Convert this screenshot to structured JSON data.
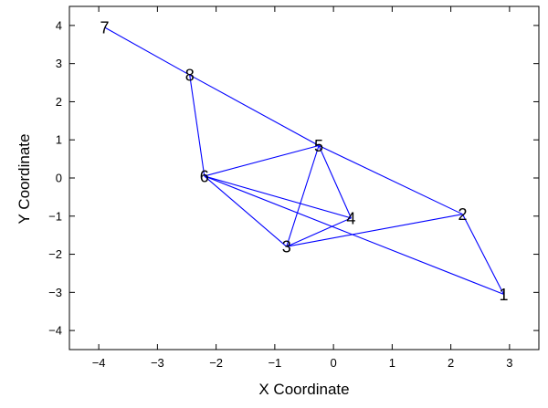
{
  "chart_data": {
    "type": "line",
    "title": "",
    "xlabel": "X Coordinate",
    "ylabel": "Y Coordinate",
    "xlim": [
      -4.5,
      3.5
    ],
    "ylim": [
      -4.5,
      4.5
    ],
    "xticks": [
      -4,
      -3,
      -2,
      -1,
      0,
      1,
      2,
      3
    ],
    "xtick_labels": [
      "−4",
      "−3",
      "−2",
      "−1",
      "0",
      "1",
      "2",
      "3"
    ],
    "yticks": [
      4,
      3,
      2,
      1,
      0,
      -1,
      -2,
      -3,
      -4
    ],
    "ytick_labels": [
      "4",
      "3",
      "2",
      "1",
      "0",
      "−1",
      "−2",
      "−3",
      "−4"
    ],
    "grid": false,
    "line_color": "#0000ff",
    "nodes": [
      {
        "label": "1",
        "x": 2.9,
        "y": -3.05
      },
      {
        "label": "2",
        "x": 2.2,
        "y": -0.95
      },
      {
        "label": "3",
        "x": -0.8,
        "y": -1.8
      },
      {
        "label": "4",
        "x": 0.3,
        "y": -1.05
      },
      {
        "label": "5",
        "x": -0.25,
        "y": 0.85
      },
      {
        "label": "6",
        "x": -2.2,
        "y": 0.05
      },
      {
        "label": "7",
        "x": -3.9,
        "y": 3.95
      },
      {
        "label": "8",
        "x": -2.45,
        "y": 2.7
      }
    ],
    "edges": [
      [
        "7",
        "8"
      ],
      [
        "8",
        "5"
      ],
      [
        "5",
        "2"
      ],
      [
        "2",
        "1"
      ],
      [
        "1",
        "6"
      ],
      [
        "6",
        "8"
      ],
      [
        "6",
        "5"
      ],
      [
        "6",
        "4"
      ],
      [
        "6",
        "3"
      ],
      [
        "3",
        "5"
      ],
      [
        "3",
        "4"
      ],
      [
        "4",
        "5"
      ],
      [
        "3",
        "2"
      ]
    ]
  }
}
